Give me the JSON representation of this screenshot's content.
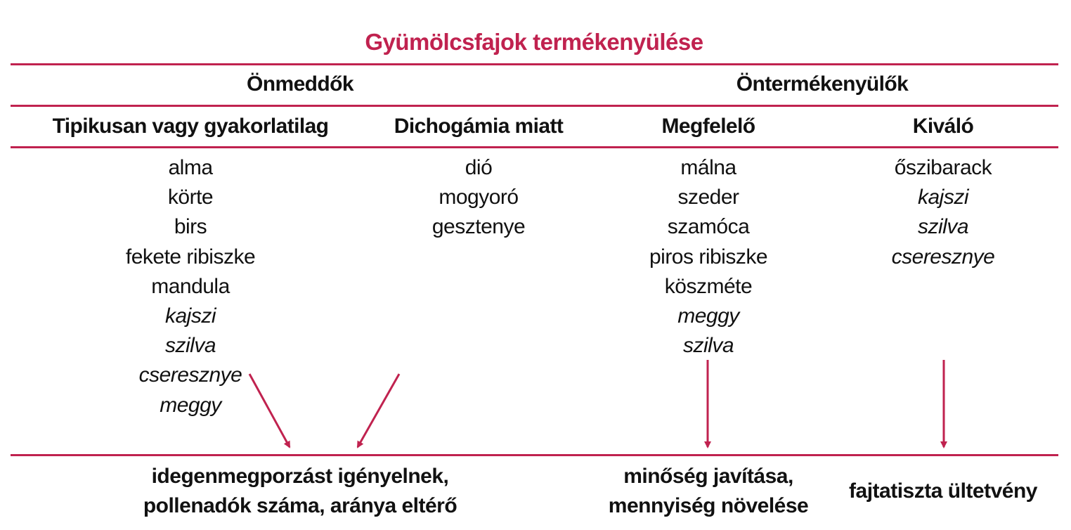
{
  "title": "Gyümölcsfajok termékenyülése",
  "accent_color": "#c0224f",
  "groups": {
    "self_sterile": "Önmeddők",
    "self_fertile": "Öntermékenyülők"
  },
  "columns": [
    {
      "header": "Tipikusan vagy gyakorlatilag",
      "items": [
        {
          "text": "alma",
          "italic": false
        },
        {
          "text": "körte",
          "italic": false
        },
        {
          "text": "birs",
          "italic": false
        },
        {
          "text": "fekete ribiszke",
          "italic": false
        },
        {
          "text": "mandula",
          "italic": false
        },
        {
          "text": "kajszi",
          "italic": true
        },
        {
          "text": "szilva",
          "italic": true
        },
        {
          "text": "cseresznye",
          "italic": true
        },
        {
          "text": "meggy",
          "italic": true
        }
      ]
    },
    {
      "header": "Dichogámia miatt",
      "items": [
        {
          "text": "dió",
          "italic": false
        },
        {
          "text": "mogyoró",
          "italic": false
        },
        {
          "text": "gesztenye",
          "italic": false
        }
      ]
    },
    {
      "header": "Megfelelő",
      "items": [
        {
          "text": "málna",
          "italic": false
        },
        {
          "text": "szeder",
          "italic": false
        },
        {
          "text": "szamóca",
          "italic": false
        },
        {
          "text": "piros ribiszke",
          "italic": false
        },
        {
          "text": "köszméte",
          "italic": false
        },
        {
          "text": "meggy",
          "italic": true
        },
        {
          "text": "szilva",
          "italic": true
        }
      ]
    },
    {
      "header": "Kiváló",
      "items": [
        {
          "text": "őszibarack",
          "italic": false
        },
        {
          "text": "kajszi",
          "italic": true
        },
        {
          "text": "szilva",
          "italic": true
        },
        {
          "text": "cseresznye",
          "italic": true
        }
      ]
    }
  ],
  "outcomes": {
    "self_sterile": [
      "idegenmegporzást igényelnek,",
      "pollenadók száma, aránya eltérő"
    ],
    "good": [
      "minőség javítása,",
      "mennyiség növelése"
    ],
    "excellent": "fajtatiszta ültetvény"
  }
}
